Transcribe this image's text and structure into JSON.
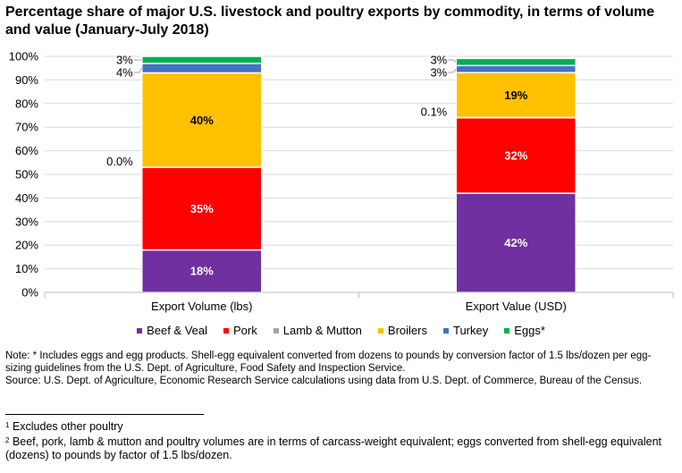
{
  "title": "Percentage share of major U.S. livestock and poultry exports by commodity, in terms of volume and value (January-July 2018)",
  "chart_data": {
    "type": "bar",
    "stacked": true,
    "categories": [
      "Export Volume (lbs)",
      "Export Value (USD)"
    ],
    "series": [
      {
        "name": "Beef & Veal",
        "color": "#7030a0",
        "values": [
          18,
          42
        ],
        "labels": [
          "18%",
          "42%"
        ]
      },
      {
        "name": "Pork",
        "color": "#ff0000",
        "values": [
          35,
          32
        ],
        "labels": [
          "35%",
          "32%"
        ]
      },
      {
        "name": "Lamb & Mutton",
        "color": "#a5a5a5",
        "values": [
          0.0,
          0.1
        ],
        "labels": [
          "0.0%",
          "0.1%"
        ]
      },
      {
        "name": "Broilers",
        "color": "#ffc000",
        "values": [
          40,
          19
        ],
        "labels": [
          "40%",
          "19%"
        ]
      },
      {
        "name": "Turkey",
        "color": "#4472c4",
        "values": [
          4,
          3
        ],
        "labels": [
          "4%",
          "3%"
        ]
      },
      {
        "name": "Eggs*",
        "color": "#00b050",
        "values": [
          3,
          3
        ],
        "labels": [
          "3%",
          "3%"
        ]
      }
    ],
    "ylim": [
      0,
      100
    ],
    "yticks": [
      "0%",
      "10%",
      "20%",
      "30%",
      "40%",
      "50%",
      "60%",
      "70%",
      "80%",
      "90%",
      "100%"
    ],
    "legend": "bottom",
    "grid": true
  },
  "notes": {
    "note": "Note: * Includes eggs and egg products. Shell-egg equivalent converted from dozens to pounds by conversion factor of 1.5 lbs/dozen per egg-sizing guidelines from the U.S. Dept. of Agriculture, Food Safety and Inspection Service.",
    "source": "Source: U.S. Dept. of Agriculture, Economic Research Service calculations using data from U.S. Dept. of Commerce, Bureau of the Census."
  },
  "footnotes": [
    {
      "mark": "1",
      "text": "Excludes other poultry"
    },
    {
      "mark": "2",
      "text": "Beef, pork, lamb & mutton and poultry volumes are in terms of carcass-weight equivalent; eggs converted from shell-egg equivalent (dozens) to pounds by factor of 1.5 lbs/dozen."
    }
  ]
}
